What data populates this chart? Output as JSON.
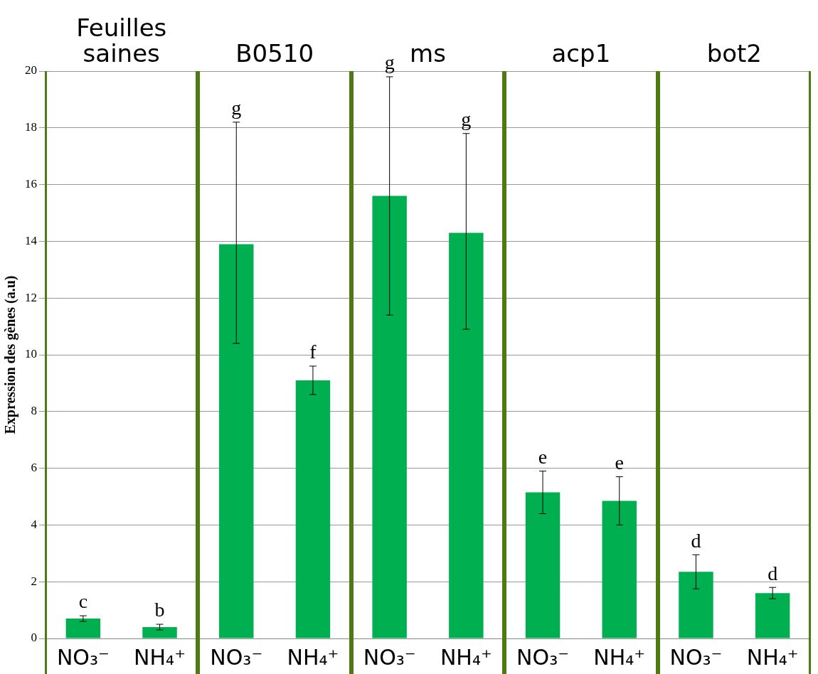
{
  "chart_data": {
    "type": "bar",
    "ylabel": "Expression des gènes (a.u)",
    "categories": [
      "NO₃⁻",
      "NH₄⁺",
      "NO₃⁻",
      "NH₄⁺",
      "NO₃⁻",
      "NH₄⁺",
      "NO₃⁻",
      "NH₄⁺",
      "NO₃⁻",
      "NH₄⁺"
    ],
    "values": [
      0.7,
      0.4,
      13.9,
      9.1,
      15.6,
      14.3,
      5.15,
      4.85,
      2.35,
      1.6
    ],
    "errors": [
      0.1,
      0.1,
      [
        10.4,
        18.2
      ],
      [
        8.6,
        9.6
      ],
      [
        11.4,
        19.8
      ],
      [
        10.9,
        17.8
      ],
      [
        4.4,
        5.9
      ],
      [
        4.0,
        5.7
      ],
      [
        1.75,
        2.95
      ],
      [
        1.4,
        1.8
      ]
    ],
    "color": "#00b050",
    "ylim": [
      0,
      20
    ],
    "yticks": [
      0,
      2,
      4,
      6,
      8,
      10,
      12,
      14,
      16,
      18,
      20
    ],
    "grid": "y",
    "legend": false,
    "annotations": [
      "Feuilles saines",
      "B0510",
      "ms",
      "acp1",
      "bot2",
      "c",
      "b",
      "g",
      "f",
      "g",
      "g",
      "e",
      "e",
      "d",
      "d"
    ]
  }
}
